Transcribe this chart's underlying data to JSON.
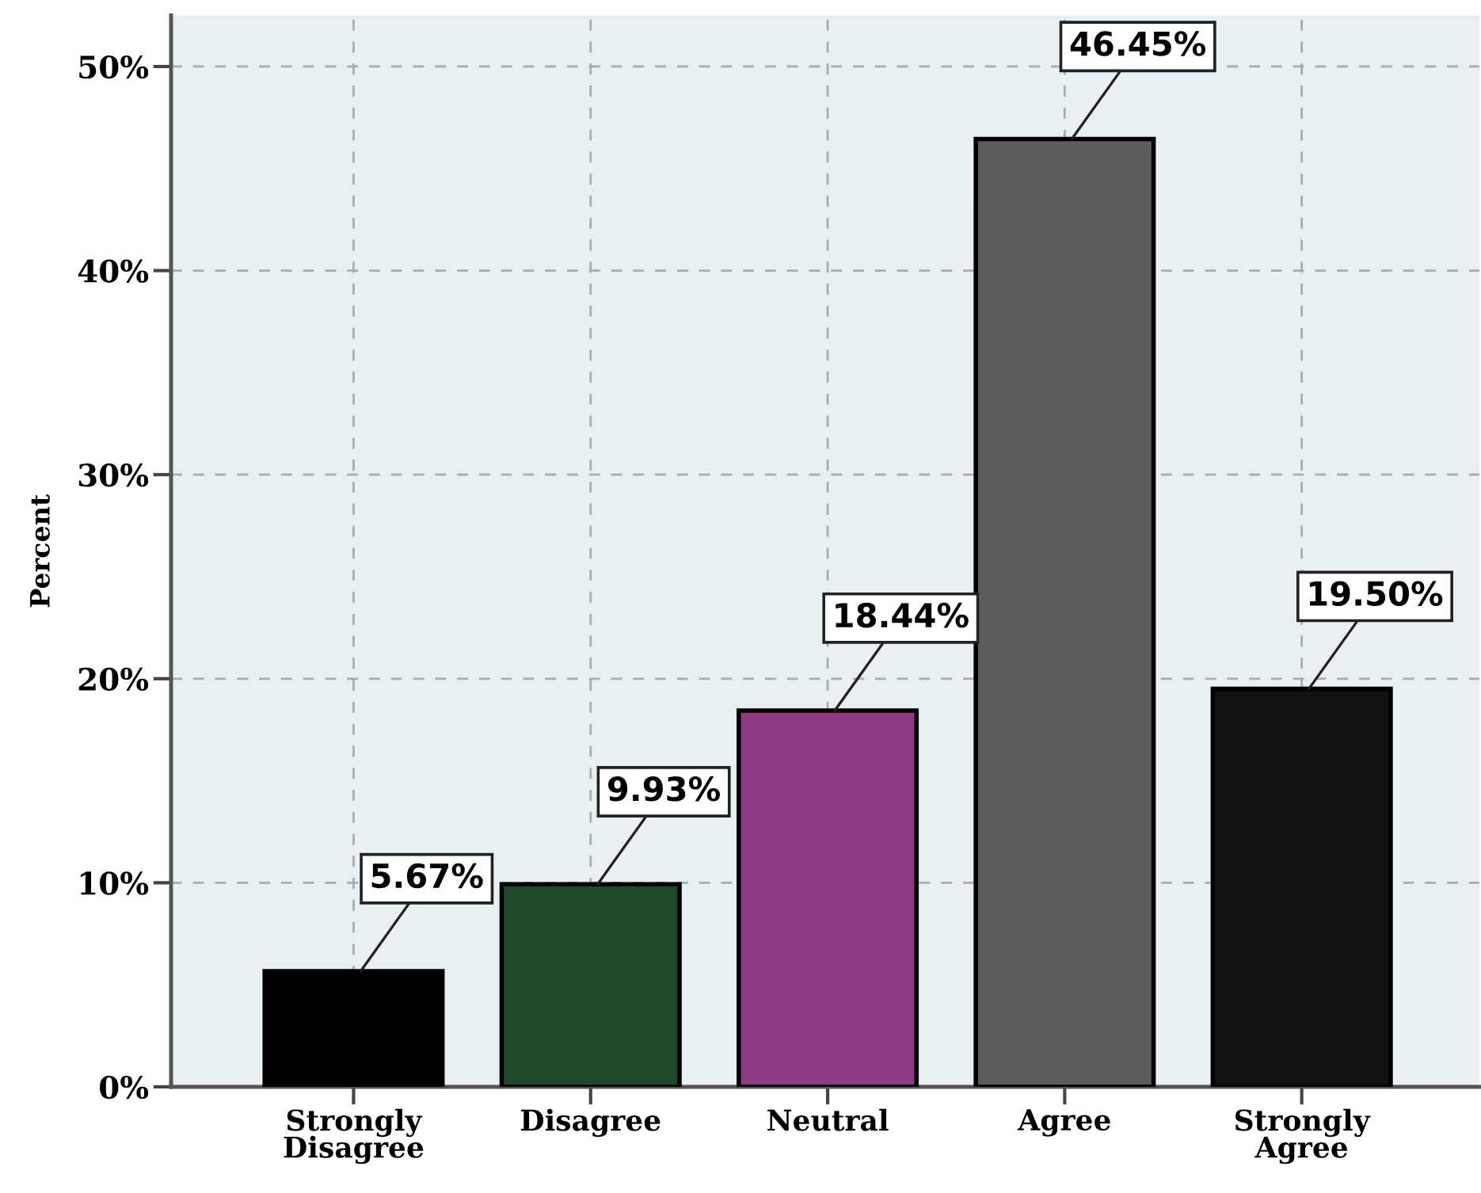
{
  "chart_data": {
    "type": "bar",
    "ylabel": "Percent",
    "categories": [
      "Strongly\nDisagree",
      "Disagree",
      "Neutral",
      "Agree",
      "Strongly\nAgree"
    ],
    "values": [
      5.67,
      9.93,
      18.44,
      46.45,
      19.5
    ],
    "colors": [
      "#000000",
      "#1f4a2c",
      "#8e3a82",
      "#5c5c5c",
      "#111111"
    ],
    "value_labels": [
      "5.67%",
      "9.93%",
      "18.44%",
      "46.45%",
      "19.50%"
    ],
    "ylim": [
      0,
      52.5
    ],
    "yticks": [
      {
        "value": 0,
        "label": "0%"
      },
      {
        "value": 10,
        "label": "10%"
      },
      {
        "value": 20,
        "label": "20%"
      },
      {
        "value": 30,
        "label": "30%"
      },
      {
        "value": 40,
        "label": "40%"
      },
      {
        "value": 50,
        "label": "50%"
      }
    ],
    "grid": true
  }
}
